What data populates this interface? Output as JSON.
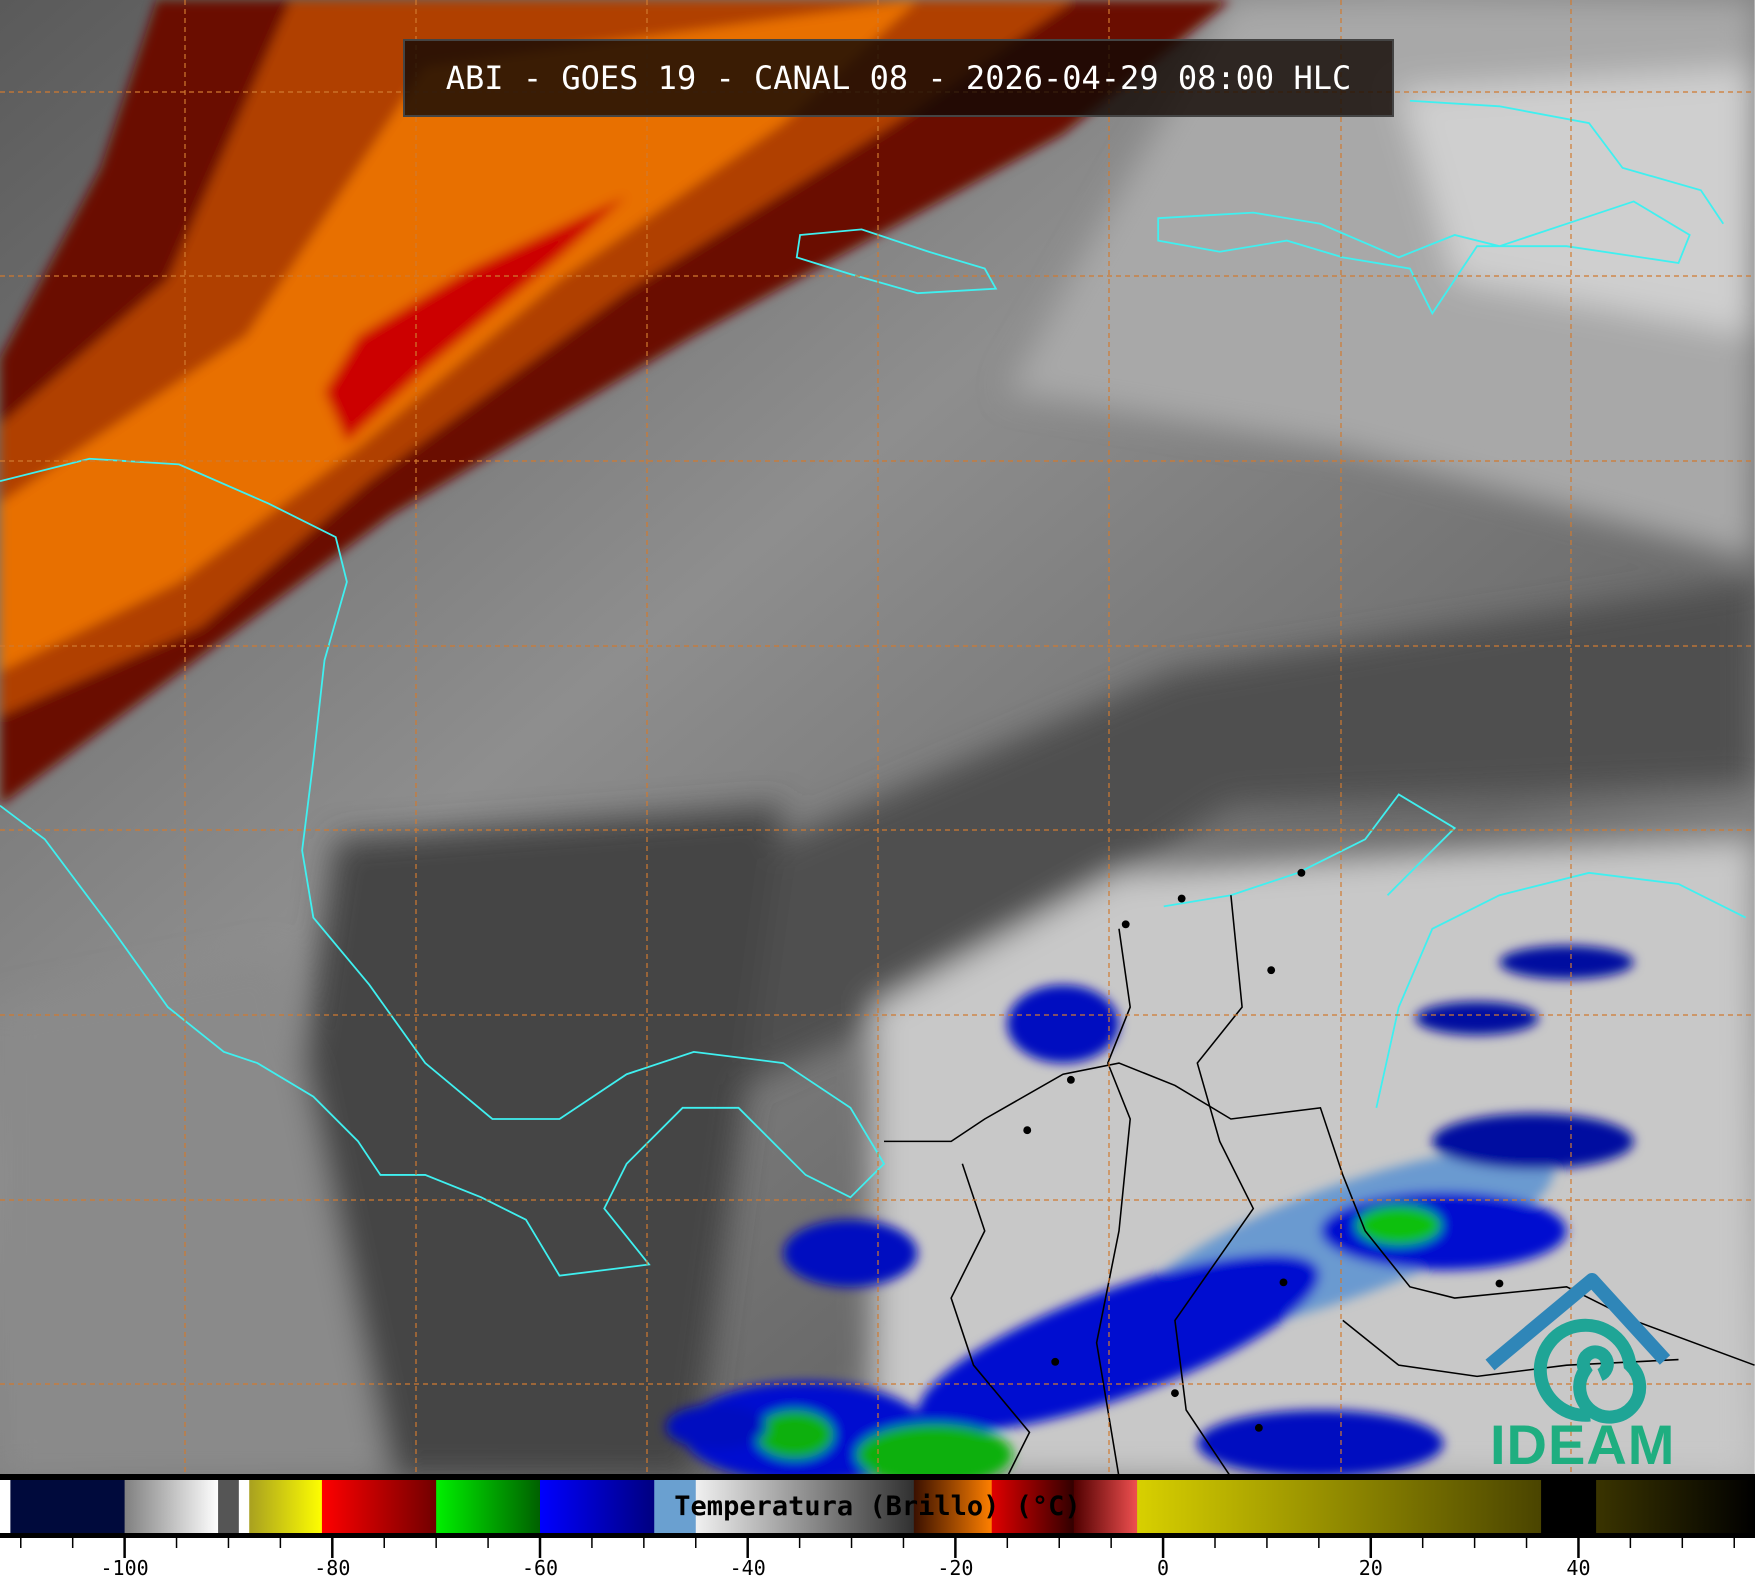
{
  "title": "ABI - GOES 19 - CANAL 08 - 2026-04-29 08:00 HLC",
  "logo": {
    "text": "IDEAM",
    "color": "#1fae80",
    "roof_color": "#2f86b8",
    "swirl_color": "#1fa596"
  },
  "map": {
    "coastline_color": "#3ff0f0",
    "border_color": "#000000",
    "gridline_color": "#d07a30",
    "gridlines": "dashed"
  },
  "colorbar": {
    "label": "Temperatura (Brillo) (°C)",
    "range": [
      -112,
      57
    ],
    "major_ticks": [
      -100,
      -80,
      -60,
      -40,
      -20,
      0,
      20,
      40
    ],
    "tick_labels": [
      "-100",
      "-80",
      "-60",
      "-40",
      "-20",
      "0",
      "20",
      "40"
    ],
    "minor_step": 5,
    "segments": [
      {
        "from": -112,
        "to": -111,
        "colors": [
          "#ffffff",
          "#ffffff"
        ]
      },
      {
        "from": -111,
        "to": -100,
        "colors": [
          "#000a3c",
          "#000a3c"
        ]
      },
      {
        "from": -100,
        "to": -91,
        "colors": [
          "#808080",
          "#ffffff"
        ]
      },
      {
        "from": -91,
        "to": -89,
        "colors": [
          "#555555",
          "#555555"
        ]
      },
      {
        "from": -89,
        "to": -88,
        "colors": [
          "#ffffff",
          "#ffffff"
        ]
      },
      {
        "from": -88,
        "to": -81,
        "colors": [
          "#a8a020",
          "#ffff00"
        ]
      },
      {
        "from": -81,
        "to": -70,
        "colors": [
          "#ff0000",
          "#700000"
        ]
      },
      {
        "from": -70,
        "to": -60,
        "colors": [
          "#00f000",
          "#006000"
        ]
      },
      {
        "from": -60,
        "to": -49,
        "colors": [
          "#0000ff",
          "#000080"
        ]
      },
      {
        "from": -49,
        "to": -45,
        "colors": [
          "#6aa0d0",
          "#6aa0d0"
        ]
      },
      {
        "from": -45,
        "to": -24,
        "colors": [
          "#f0f0f0",
          "#303030"
        ]
      },
      {
        "from": -24,
        "to": -16.5,
        "colors": [
          "#3a1000",
          "#ff8000"
        ]
      },
      {
        "from": -16.5,
        "to": -8.6,
        "colors": [
          "#e00000",
          "#300000"
        ]
      },
      {
        "from": -8.6,
        "to": -2.5,
        "colors": [
          "#500000",
          "#f05050"
        ]
      },
      {
        "from": -2.5,
        "to": 36.4,
        "colors": [
          "#d8d000",
          "#4a4400"
        ]
      },
      {
        "from": 36.4,
        "to": 41.7,
        "colors": [
          "#000000",
          "#000000"
        ]
      },
      {
        "from": 41.7,
        "to": 57,
        "colors": [
          "#3a3400",
          "#000000"
        ]
      }
    ]
  }
}
